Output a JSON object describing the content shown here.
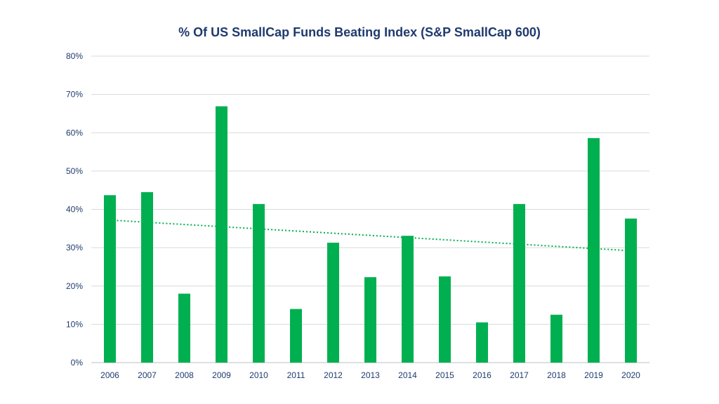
{
  "chart_data": {
    "type": "bar",
    "title": "% Of US SmallCap Funds Beating Index (S&P SmallCap 600)",
    "xlabel": "",
    "ylabel": "",
    "categories": [
      "2006",
      "2007",
      "2008",
      "2009",
      "2010",
      "2011",
      "2012",
      "2013",
      "2014",
      "2015",
      "2016",
      "2017",
      "2018",
      "2019",
      "2020"
    ],
    "values": [
      43.7,
      44.5,
      18.0,
      66.9,
      41.4,
      14.0,
      31.3,
      22.3,
      33.1,
      22.5,
      10.5,
      41.4,
      12.5,
      58.6,
      37.6
    ],
    "ylim": [
      0,
      80
    ],
    "yticks": [
      "0%",
      "10%",
      "20%",
      "30%",
      "40%",
      "50%",
      "60%",
      "70%",
      "80%"
    ],
    "bar_color": "#00b050",
    "trendline": {
      "type": "linear",
      "style": "dotted",
      "color": "#00b050",
      "start_value": 37.2,
      "end_value": 29.2
    },
    "grid": true,
    "legend": "none"
  }
}
